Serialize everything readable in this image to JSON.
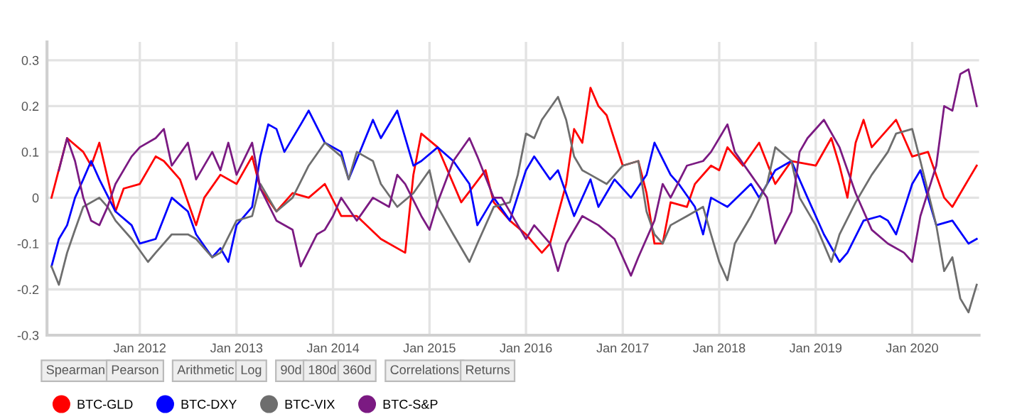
{
  "chart_data": {
    "type": "line",
    "series": [
      {
        "name": "BTC-GLD",
        "color": "#ff0000",
        "x": [
          "2011-02",
          "2011-04",
          "2011-06",
          "2011-07",
          "2011-08",
          "2011-10",
          "2011-11",
          "2012-01",
          "2012-03",
          "2012-04",
          "2012-06",
          "2012-08",
          "2012-09",
          "2012-11",
          "2013-01",
          "2013-03",
          "2013-04",
          "2013-06",
          "2013-08",
          "2013-10",
          "2013-12",
          "2014-02",
          "2014-04",
          "2014-07",
          "2014-10",
          "2014-11",
          "2014-12",
          "2015-02",
          "2015-05",
          "2015-08",
          "2015-09",
          "2015-11",
          "2016-01",
          "2016-03",
          "2016-04",
          "2016-06",
          "2016-07",
          "2016-08",
          "2016-09",
          "2016-10",
          "2016-11",
          "2017-01",
          "2017-03",
          "2017-04",
          "2017-05",
          "2017-06",
          "2017-07",
          "2017-09",
          "2017-10",
          "2017-12",
          "2018-01",
          "2018-02",
          "2018-04",
          "2018-06",
          "2018-08",
          "2018-10",
          "2019-01",
          "2019-03",
          "2019-04",
          "2019-05",
          "2019-06",
          "2019-07",
          "2019-08",
          "2019-11",
          "2020-01",
          "2020-03",
          "2020-05",
          "2020-06",
          "2020-08",
          "2020-09"
        ],
        "values": [
          0.0,
          0.13,
          0.1,
          0.07,
          0.12,
          -0.03,
          0.02,
          0.03,
          0.09,
          0.08,
          0.04,
          -0.06,
          0.0,
          0.05,
          0.03,
          0.09,
          0.02,
          -0.03,
          0.01,
          0.0,
          0.03,
          -0.04,
          -0.04,
          -0.09,
          -0.12,
          0.05,
          0.14,
          0.11,
          -0.01,
          0.06,
          -0.01,
          -0.05,
          -0.08,
          -0.12,
          -0.1,
          0.03,
          0.15,
          0.12,
          0.24,
          0.2,
          0.18,
          0.07,
          0.08,
          0.01,
          -0.1,
          -0.1,
          -0.01,
          -0.02,
          0.03,
          0.07,
          0.06,
          0.11,
          0.07,
          0.12,
          0.03,
          0.08,
          0.07,
          0.13,
          0.07,
          0.0,
          0.12,
          0.17,
          0.11,
          0.17,
          0.09,
          0.1,
          0.0,
          -0.02,
          0.04,
          0.07
        ]
      },
      {
        "name": "BTC-DXY",
        "color": "#0000ff",
        "x": [
          "2011-02",
          "2011-03",
          "2011-04",
          "2011-05",
          "2011-06",
          "2011-07",
          "2011-08",
          "2011-10",
          "2011-12",
          "2012-01",
          "2012-03",
          "2012-05",
          "2012-07",
          "2012-08",
          "2012-10",
          "2012-11",
          "2012-12",
          "2013-01",
          "2013-03",
          "2013-04",
          "2013-05",
          "2013-06",
          "2013-07",
          "2013-09",
          "2013-10",
          "2013-12",
          "2014-02",
          "2014-03",
          "2014-06",
          "2014-07",
          "2014-09",
          "2014-11",
          "2014-12",
          "2015-02",
          "2015-04",
          "2015-06",
          "2015-07",
          "2015-09",
          "2015-11",
          "2016-01",
          "2016-02",
          "2016-04",
          "2016-05",
          "2016-07",
          "2016-09",
          "2016-10",
          "2016-12",
          "2017-02",
          "2017-04",
          "2017-05",
          "2017-07",
          "2017-08",
          "2017-10",
          "2017-11",
          "2017-12",
          "2018-02",
          "2018-05",
          "2018-06",
          "2018-08",
          "2018-10",
          "2018-12",
          "2019-02",
          "2019-04",
          "2019-05",
          "2019-07",
          "2019-09",
          "2019-10",
          "2019-11",
          "2020-01",
          "2020-02",
          "2020-03",
          "2020-04",
          "2020-06",
          "2020-08",
          "2020-09"
        ],
        "values": [
          -0.15,
          -0.09,
          -0.06,
          0.0,
          0.04,
          0.08,
          0.04,
          -0.03,
          -0.06,
          -0.1,
          -0.09,
          0.0,
          -0.03,
          -0.08,
          -0.13,
          -0.11,
          -0.14,
          -0.06,
          -0.02,
          0.09,
          0.16,
          0.15,
          0.1,
          0.16,
          0.19,
          0.12,
          0.1,
          0.04,
          0.17,
          0.13,
          0.19,
          0.07,
          0.08,
          0.11,
          0.08,
          0.03,
          -0.06,
          0.0,
          -0.05,
          0.06,
          0.09,
          0.04,
          0.06,
          -0.04,
          0.04,
          -0.02,
          0.04,
          0.0,
          0.05,
          0.12,
          0.05,
          0.03,
          -0.02,
          -0.08,
          0.0,
          -0.02,
          0.03,
          0.0,
          0.06,
          0.08,
          0.0,
          -0.08,
          -0.14,
          -0.12,
          -0.05,
          -0.04,
          -0.05,
          -0.08,
          0.03,
          0.06,
          0.0,
          -0.06,
          -0.05,
          -0.1,
          -0.09
        ]
      },
      {
        "name": "BTC-VIX",
        "color": "#6e6e6e",
        "x": [
          "2011-02",
          "2011-03",
          "2011-04",
          "2011-05",
          "2011-06",
          "2011-08",
          "2011-09",
          "2011-10",
          "2011-12",
          "2012-02",
          "2012-03",
          "2012-05",
          "2012-07",
          "2012-08",
          "2012-10",
          "2012-11",
          "2013-01",
          "2013-03",
          "2013-04",
          "2013-06",
          "2013-08",
          "2013-10",
          "2013-12",
          "2014-02",
          "2014-03",
          "2014-04",
          "2014-06",
          "2014-07",
          "2014-09",
          "2014-11",
          "2015-01",
          "2015-02",
          "2015-04",
          "2015-06",
          "2015-07",
          "2015-09",
          "2015-11",
          "2015-12",
          "2016-01",
          "2016-02",
          "2016-03",
          "2016-05",
          "2016-06",
          "2016-07",
          "2016-08",
          "2016-09",
          "2016-11",
          "2017-01",
          "2017-03",
          "2017-04",
          "2017-05",
          "2017-06",
          "2017-07",
          "2017-09",
          "2017-11",
          "2017-12",
          "2018-01",
          "2018-02",
          "2018-03",
          "2018-05",
          "2018-07",
          "2018-08",
          "2018-10",
          "2018-11",
          "2019-01",
          "2019-03",
          "2019-04",
          "2019-06",
          "2019-08",
          "2019-10",
          "2019-11",
          "2020-01",
          "2020-02",
          "2020-04",
          "2020-05",
          "2020-06",
          "2020-07",
          "2020-08",
          "2020-09"
        ],
        "values": [
          -0.15,
          -0.19,
          -0.12,
          -0.07,
          -0.02,
          0.0,
          -0.02,
          -0.05,
          -0.09,
          -0.14,
          -0.12,
          -0.08,
          -0.08,
          -0.09,
          -0.13,
          -0.12,
          -0.05,
          -0.04,
          0.03,
          -0.03,
          0.0,
          0.07,
          0.12,
          0.09,
          0.04,
          0.1,
          0.08,
          0.03,
          -0.02,
          0.01,
          0.06,
          -0.02,
          -0.08,
          -0.14,
          -0.1,
          -0.02,
          -0.01,
          0.05,
          0.14,
          0.13,
          0.17,
          0.22,
          0.17,
          0.09,
          0.06,
          0.05,
          0.03,
          0.07,
          0.08,
          -0.03,
          -0.08,
          -0.1,
          -0.06,
          -0.04,
          -0.02,
          -0.08,
          -0.14,
          -0.18,
          -0.1,
          -0.04,
          0.03,
          0.11,
          0.08,
          0.0,
          -0.06,
          -0.14,
          -0.08,
          -0.01,
          0.05,
          0.1,
          0.14,
          0.15,
          0.08,
          -0.06,
          -0.16,
          -0.13,
          -0.22,
          -0.25,
          -0.19
        ]
      },
      {
        "name": "BTC-S&P",
        "color": "#7b1a82",
        "x": [
          "2011-03",
          "2011-04",
          "2011-05",
          "2011-06",
          "2011-07",
          "2011-08",
          "2011-09",
          "2011-10",
          "2011-12",
          "2012-01",
          "2012-03",
          "2012-04",
          "2012-05",
          "2012-07",
          "2012-08",
          "2012-10",
          "2012-11",
          "2012-12",
          "2013-01",
          "2013-03",
          "2013-04",
          "2013-06",
          "2013-08",
          "2013-09",
          "2013-11",
          "2013-12",
          "2014-01",
          "2014-02",
          "2014-04",
          "2014-06",
          "2014-08",
          "2014-09",
          "2014-10",
          "2014-12",
          "2015-01",
          "2015-02",
          "2015-04",
          "2015-06",
          "2015-07",
          "2015-09",
          "2015-10",
          "2015-12",
          "2016-01",
          "2016-02",
          "2016-04",
          "2016-05",
          "2016-06",
          "2016-08",
          "2016-10",
          "2016-12",
          "2017-02",
          "2017-03",
          "2017-05",
          "2017-06",
          "2017-07",
          "2017-09",
          "2017-11",
          "2017-12",
          "2018-02",
          "2018-03",
          "2018-05",
          "2018-07",
          "2018-08",
          "2018-10",
          "2018-11",
          "2018-12",
          "2019-02",
          "2019-04",
          "2019-06",
          "2019-08",
          "2019-10",
          "2019-12",
          "2020-01",
          "2020-02",
          "2020-04",
          "2020-05",
          "2020-06",
          "2020-07",
          "2020-08",
          "2020-09"
        ],
        "values": [
          0.06,
          0.13,
          0.08,
          0.0,
          -0.05,
          -0.06,
          -0.02,
          0.03,
          0.09,
          0.11,
          0.13,
          0.15,
          0.07,
          0.12,
          0.04,
          0.1,
          0.06,
          0.12,
          0.05,
          0.12,
          0.02,
          -0.05,
          -0.07,
          -0.15,
          -0.08,
          -0.07,
          -0.04,
          0.0,
          -0.05,
          0.0,
          -0.02,
          0.05,
          0.03,
          -0.04,
          -0.07,
          -0.01,
          0.08,
          0.13,
          0.09,
          0.0,
          0.0,
          -0.06,
          -0.09,
          -0.06,
          -0.1,
          -0.16,
          -0.1,
          -0.04,
          -0.06,
          -0.09,
          -0.17,
          -0.13,
          -0.05,
          0.03,
          0.0,
          0.07,
          0.08,
          0.1,
          0.16,
          0.1,
          0.05,
          0.0,
          -0.1,
          -0.03,
          0.1,
          0.13,
          0.17,
          0.11,
          0.01,
          -0.07,
          -0.1,
          -0.12,
          -0.14,
          -0.04,
          0.07,
          0.2,
          0.19,
          0.27,
          0.28,
          0.2
        ]
      }
    ],
    "xlim": [
      "2011-01-15",
      "2020-09-10"
    ],
    "xticks": [
      {
        "value": "2012-01-01",
        "label": "Jan 2012"
      },
      {
        "value": "2013-01-01",
        "label": "Jan 2013"
      },
      {
        "value": "2014-01-01",
        "label": "Jan 2014"
      },
      {
        "value": "2015-01-01",
        "label": "Jan 2015"
      },
      {
        "value": "2016-01-01",
        "label": "Jan 2016"
      },
      {
        "value": "2017-01-01",
        "label": "Jan 2017"
      },
      {
        "value": "2018-01-01",
        "label": "Jan 2018"
      },
      {
        "value": "2019-01-01",
        "label": "Jan 2019"
      },
      {
        "value": "2020-01-01",
        "label": "Jan 2020"
      }
    ],
    "ylim": [
      -0.3,
      0.34
    ],
    "yticks": [
      -0.3,
      -0.2,
      -0.1,
      0,
      0.1,
      0.2,
      0.3
    ],
    "grid": true,
    "legend": "bottom left",
    "annotations": [
      "Spearman",
      "Pearson",
      "Arithmetic",
      "Log",
      "90d",
      "180d",
      "360d",
      "Correlations",
      "Returns"
    ]
  }
}
